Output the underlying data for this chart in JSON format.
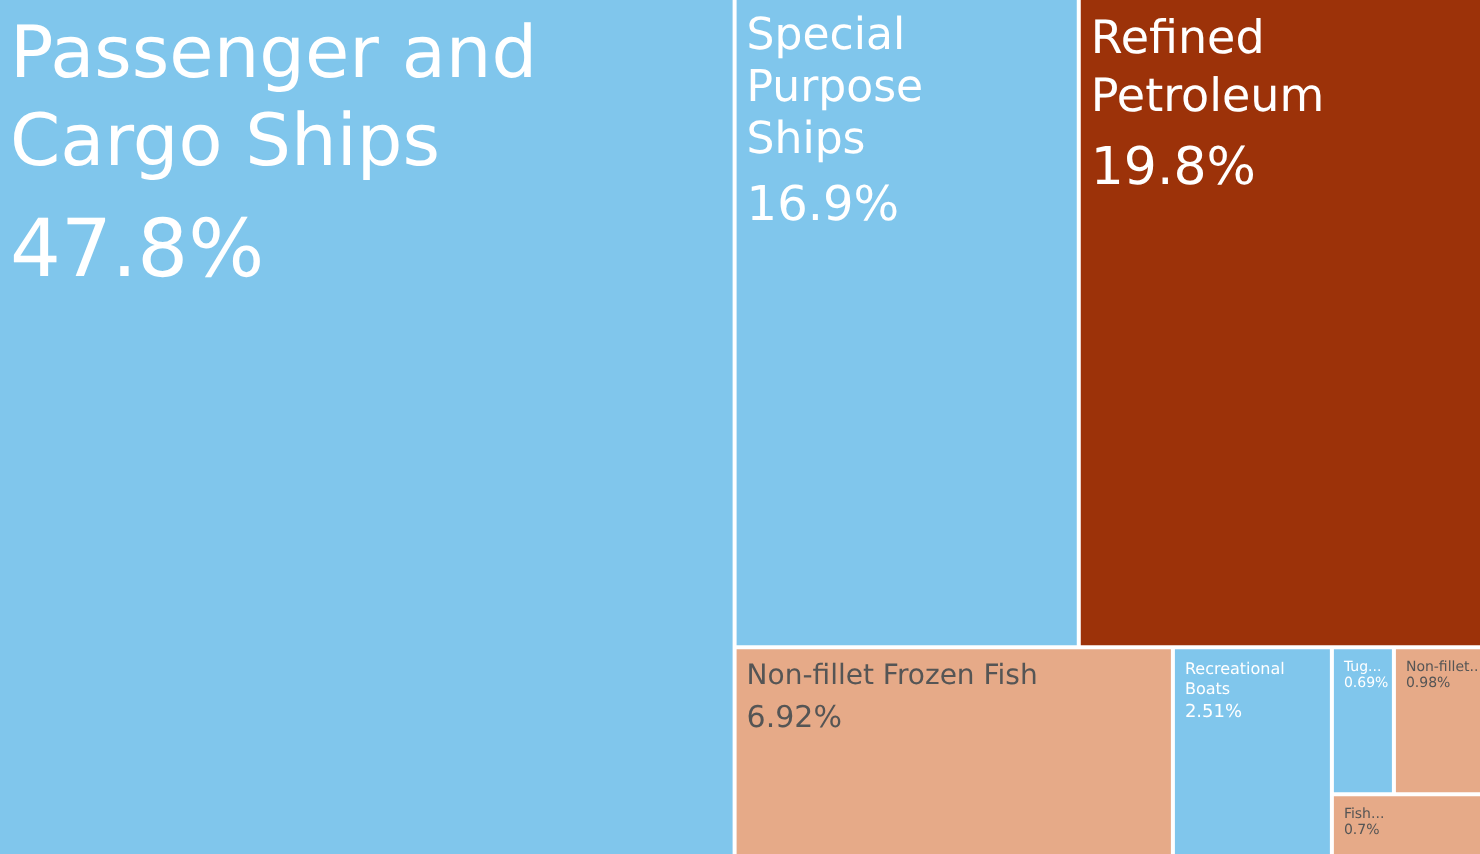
{
  "chart_data": {
    "type": "other",
    "categories": [
      "Passenger and Cargo Ships",
      "Special Purpose Ships",
      "Refined Petroleum",
      "Non-fillet Frozen Fish",
      "Recreational Boats",
      "Tug...",
      "Non-fillet...",
      "Fish..."
    ],
    "values": [
      47.8,
      16.9,
      19.8,
      6.92,
      2.51,
      0.69,
      0.98,
      0.7
    ],
    "value_labels": [
      "47.8%",
      "16.9%",
      "19.8%",
      "6.92%",
      "2.51%",
      "0.69%",
      "0.98%",
      "0.7%"
    ],
    "colors": [
      "#80c6ec",
      "#80c6ec",
      "#9c3209",
      "#e6aa88",
      "#80c6ec",
      "#80c6ec",
      "#e6aa88",
      "#e6aa88"
    ]
  }
}
